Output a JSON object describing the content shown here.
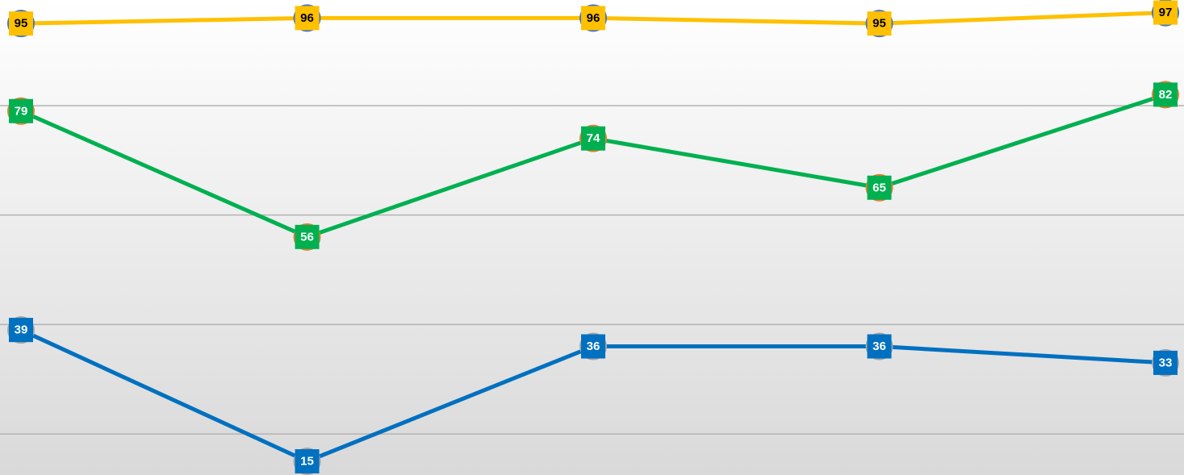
{
  "chart_data": {
    "type": "line",
    "categories": [
      null,
      null,
      null,
      null,
      null
    ],
    "series": [
      {
        "color": "#ffc000",
        "marker_color": "#4472c4",
        "label_text_color": "#000000",
        "values": [
          95,
          96,
          96,
          95,
          97
        ]
      },
      {
        "color": "#00b050",
        "marker_color": "#ed7d31",
        "label_text_color": "#ffffff",
        "values": [
          79,
          56,
          74,
          65,
          82
        ]
      },
      {
        "color": "#0070c0",
        "marker_color": "#a5a5a5",
        "label_text_color": "#ffffff",
        "values": [
          39,
          15,
          36,
          36,
          33
        ]
      }
    ],
    "ylim": [
      12.5,
      99.3
    ],
    "yticks": [
      20,
      40,
      60,
      80
    ],
    "grid": true
  }
}
